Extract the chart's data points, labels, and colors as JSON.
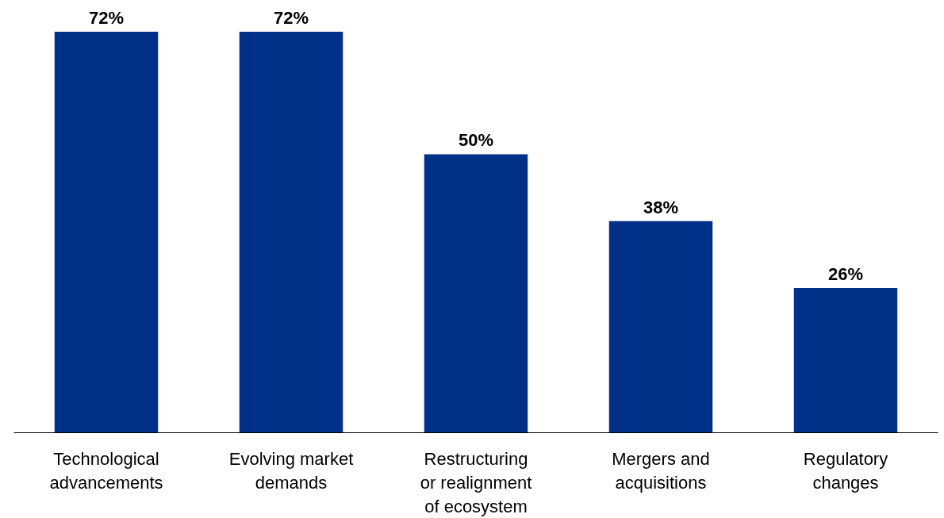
{
  "chart_data": {
    "type": "bar",
    "categories": [
      "Technological advancements",
      "Evolving market demands",
      "Restructuring or realignment of ecosystem",
      "Mergers and acquisitions",
      "Regulatory changes"
    ],
    "values": [
      72,
      72,
      50,
      38,
      26
    ],
    "value_labels": [
      "72%",
      "72%",
      "50%",
      "38%",
      "26%"
    ],
    "color": "#003087",
    "grid": false
  }
}
